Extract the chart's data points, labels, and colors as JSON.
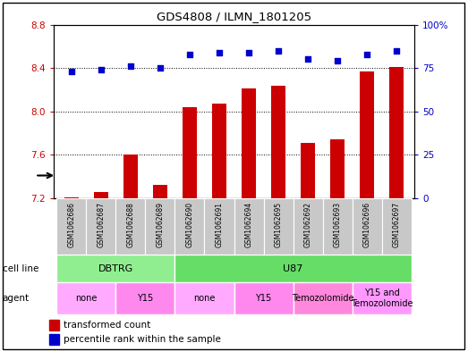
{
  "title": "GDS4808 / ILMN_1801205",
  "samples": [
    "GSM1062686",
    "GSM1062687",
    "GSM1062688",
    "GSM1062689",
    "GSM1062690",
    "GSM1062691",
    "GSM1062694",
    "GSM1062695",
    "GSM1062692",
    "GSM1062693",
    "GSM1062696",
    "GSM1062697"
  ],
  "transformed_count": [
    7.21,
    7.26,
    7.6,
    7.32,
    8.04,
    8.07,
    8.21,
    8.24,
    7.71,
    7.74,
    8.37,
    8.41
  ],
  "percentile_rank": [
    73,
    74,
    76,
    75,
    83,
    84,
    84,
    85,
    80,
    79,
    83,
    85
  ],
  "ylim_left": [
    7.2,
    8.8
  ],
  "ylim_right": [
    0,
    100
  ],
  "yticks_left": [
    7.2,
    7.6,
    8.0,
    8.4,
    8.8
  ],
  "yticks_right": [
    0,
    25,
    50,
    75,
    100
  ],
  "bar_color": "#cc0000",
  "dot_color": "#0000cc",
  "cell_line_groups": [
    {
      "label": "DBTRG",
      "start": 0,
      "end": 3,
      "color": "#90ee90"
    },
    {
      "label": "U87",
      "start": 4,
      "end": 11,
      "color": "#66dd66"
    }
  ],
  "agent_groups": [
    {
      "label": "none",
      "start": 0,
      "end": 1,
      "color": "#ffaaff"
    },
    {
      "label": "Y15",
      "start": 2,
      "end": 3,
      "color": "#ff88ee"
    },
    {
      "label": "none",
      "start": 4,
      "end": 5,
      "color": "#ffaaff"
    },
    {
      "label": "Y15",
      "start": 6,
      "end": 7,
      "color": "#ff88ee"
    },
    {
      "label": "Temozolomide",
      "start": 8,
      "end": 9,
      "color": "#ff88dd"
    },
    {
      "label": "Y15 and\nTemozolomide",
      "start": 10,
      "end": 11,
      "color": "#ff99ff"
    }
  ],
  "legend_bar_label": "transformed count",
  "legend_dot_label": "percentile rank within the sample",
  "bar_width": 0.5,
  "label_gray": "#c8c8c8"
}
